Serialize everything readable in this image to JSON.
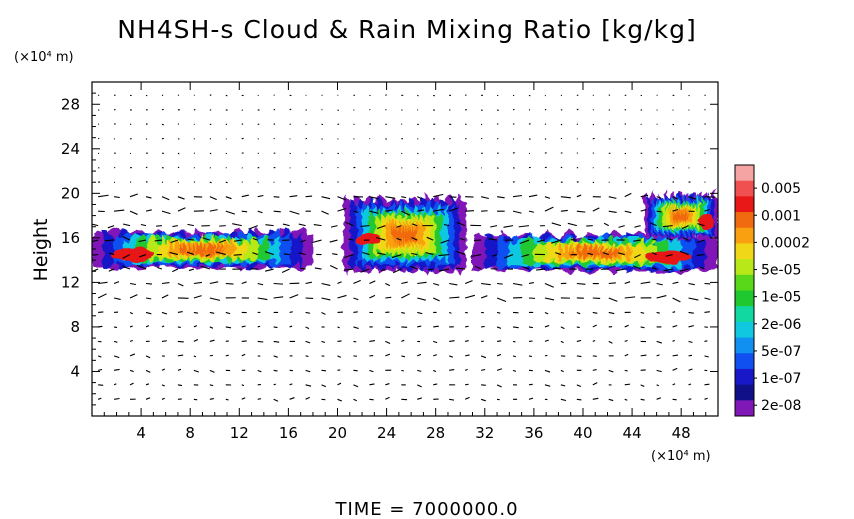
{
  "chart_data": {
    "type": "heatmap",
    "title": "NH4SH-s Cloud & Rain Mixing Ratio [kg/kg]",
    "ylabel": "Height",
    "x_unit": "(×10⁴ m)",
    "y_unit": "(×10⁴ m)",
    "xlim": [
      0,
      51
    ],
    "ylim": [
      0,
      30
    ],
    "x_ticks": [
      4,
      8,
      12,
      16,
      20,
      24,
      28,
      32,
      36,
      40,
      44,
      48
    ],
    "y_ticks": [
      4,
      8,
      12,
      16,
      20,
      24,
      28
    ],
    "time_label": "TIME  =  7000000.0",
    "colorbar": {
      "labels": [
        "0.005",
        "0.001",
        "0.0002",
        "5e-05",
        "1e-05",
        "2e-06",
        "5e-07",
        "1e-07",
        "2e-08"
      ],
      "colors": [
        "#f6a3a3",
        "#f05050",
        "#e81818",
        "#f06a10",
        "#f8a010",
        "#f0d818",
        "#b8e818",
        "#58d818",
        "#20c830",
        "#10d8a0",
        "#10c8e0",
        "#1090f0",
        "#1050f0",
        "#1818c8",
        "#101088",
        "#8018b8"
      ]
    },
    "cloud_regions": [
      {
        "x": [
          0,
          18
        ],
        "y": [
          13.3,
          16.5
        ],
        "core": [
          0.5,
          6
        ]
      },
      {
        "x": [
          20.5,
          30.5
        ],
        "y": [
          13.0,
          19.5
        ],
        "core": [
          21,
          24
        ]
      },
      {
        "x": [
          31,
          51
        ],
        "y": [
          13.0,
          16.3
        ],
        "core": [
          44,
          50
        ]
      },
      {
        "x": [
          45,
          51
        ],
        "y": [
          16.0,
          19.8
        ],
        "core": [
          49,
          51
        ]
      }
    ],
    "wind_field": "velocity vectors"
  }
}
